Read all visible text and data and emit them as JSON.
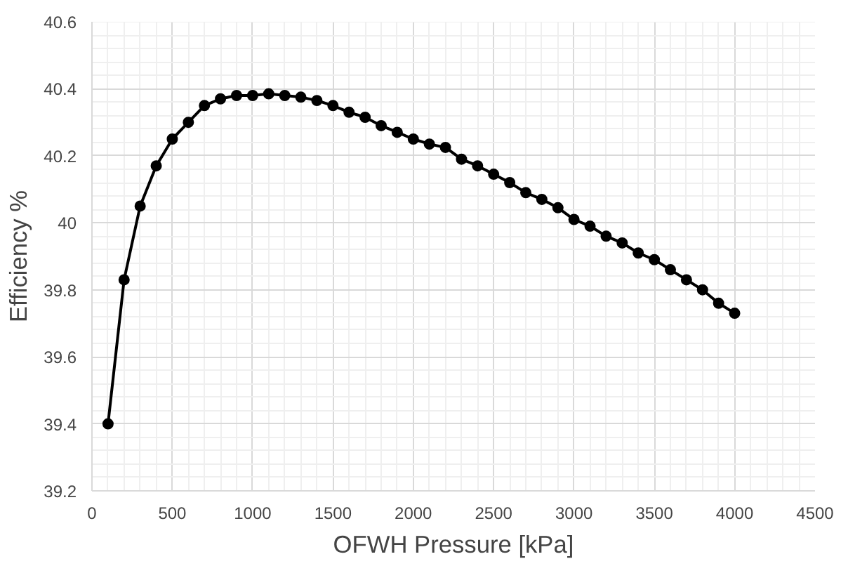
{
  "chart_data": {
    "type": "line",
    "xlabel": "OFWH Pressure [kPa]",
    "ylabel": "Efficiency %",
    "x": [
      100,
      200,
      300,
      400,
      500,
      600,
      700,
      800,
      900,
      1000,
      1100,
      1200,
      1300,
      1400,
      1500,
      1600,
      1700,
      1800,
      1900,
      2000,
      2100,
      2200,
      2300,
      2400,
      2500,
      2600,
      2700,
      2800,
      2900,
      3000,
      3100,
      3200,
      3300,
      3400,
      3500,
      3600,
      3700,
      3800,
      3900,
      4000
    ],
    "series": [
      {
        "color": "#000000",
        "values": [
          39.4,
          39.83,
          40.05,
          40.17,
          40.25,
          40.3,
          40.35,
          40.37,
          40.38,
          40.38,
          40.385,
          40.38,
          40.375,
          40.365,
          40.35,
          40.33,
          40.315,
          40.29,
          40.27,
          40.25,
          40.235,
          40.225,
          40.19,
          40.17,
          40.145,
          40.12,
          40.09,
          40.07,
          40.045,
          40.01,
          39.99,
          39.96,
          39.94,
          39.91,
          39.89,
          39.86,
          39.83,
          39.8,
          39.76,
          39.73
        ]
      }
    ],
    "xlim": [
      0,
      4500
    ],
    "ylim": [
      39.2,
      40.6
    ],
    "xticks": [
      0,
      500,
      1000,
      1500,
      2000,
      2500,
      3000,
      3500,
      4000,
      4500
    ],
    "yticks": [
      39.2,
      39.4,
      39.6,
      39.8,
      {
        "value": 40,
        "label": "40"
      },
      40.2,
      40.4,
      40.6
    ],
    "grid": true,
    "marker": "circle",
    "line_style": "solid"
  }
}
